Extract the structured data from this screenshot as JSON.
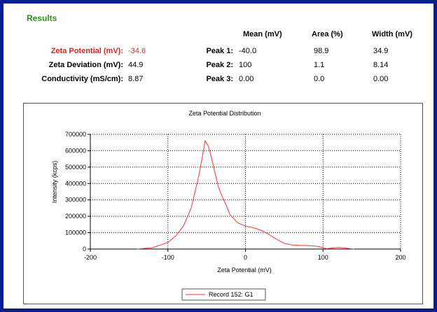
{
  "results": {
    "title": "Results",
    "headers": {
      "mean": "Mean (mV)",
      "area": "Area (%)",
      "width": "Width (mV)"
    },
    "summary": [
      {
        "label": "Zeta Potential (mV):",
        "value": "-34.6"
      },
      {
        "label": "Zeta Deviation (mV):",
        "value": "44.9"
      },
      {
        "label": "Conductivity (mS/cm):",
        "value": "8.87"
      }
    ],
    "peaks": [
      {
        "label": "Peak 1:",
        "mean": "-40.0",
        "area": "98.9",
        "width": "34.9"
      },
      {
        "label": "Peak 2:",
        "mean": "100",
        "area": "1.1",
        "width": "8.14"
      },
      {
        "label": "Peak 3:",
        "mean": "0.00",
        "area": "0.0",
        "width": "0.00"
      }
    ]
  },
  "chart_data": {
    "type": "line",
    "title": "Zeta Potential Distribution",
    "xlabel": "Zeta Potential (mV)",
    "ylabel": "Intensity (kcps)",
    "xlim": [
      -200,
      200
    ],
    "ylim": [
      0,
      700000
    ],
    "xticks": [
      "-200",
      "-100",
      "0",
      "100",
      "200"
    ],
    "yticks": [
      "0",
      "100000",
      "200000",
      "300000",
      "400000",
      "500000",
      "600000",
      "700000"
    ],
    "grid": true,
    "legend_position": "bottom",
    "series": [
      {
        "name": "Record 152: G1",
        "color": "#ff3333",
        "x": [
          -140,
          -120,
          -100,
          -90,
          -80,
          -70,
          -65,
          -60,
          -55,
          -52,
          -48,
          -45,
          -40,
          -35,
          -30,
          -25,
          -20,
          -10,
          0,
          10,
          20,
          30,
          40,
          50,
          60,
          70,
          80,
          90,
          95,
          100,
          105,
          110,
          120,
          130,
          140
        ],
        "y": [
          0,
          8000,
          40000,
          80000,
          140000,
          250000,
          350000,
          450000,
          580000,
          660000,
          630000,
          580000,
          480000,
          380000,
          320000,
          270000,
          210000,
          160000,
          140000,
          130000,
          115000,
          90000,
          60000,
          35000,
          25000,
          22000,
          21000,
          18000,
          15000,
          8000,
          2000,
          5000,
          10000,
          5000,
          0
        ]
      }
    ]
  }
}
